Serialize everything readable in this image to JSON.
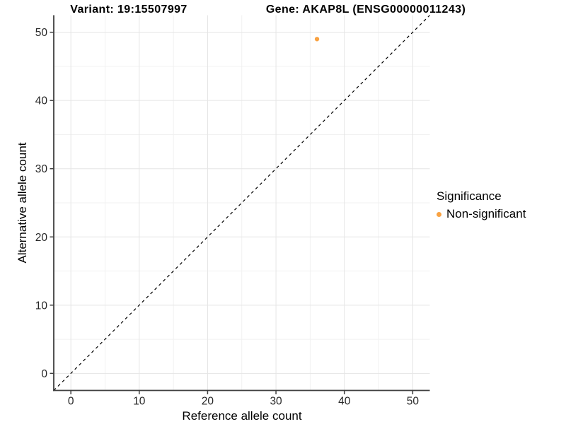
{
  "chart_data": {
    "type": "scatter",
    "titles": {
      "left": "Variant: 19:15507997",
      "right": "Gene: AKAP8L (ENSG00000011243)"
    },
    "xlabel": "Reference allele count",
    "ylabel": "Alternative allele count",
    "xlim": [
      -2.5,
      52.5
    ],
    "ylim": [
      -2.5,
      52.5
    ],
    "x_ticks": [
      0,
      10,
      20,
      30,
      40,
      50
    ],
    "y_ticks": [
      0,
      10,
      20,
      30,
      40,
      50
    ],
    "x_minor_ticks": [
      5,
      15,
      25,
      35,
      45
    ],
    "y_minor_ticks": [
      5,
      15,
      25,
      35,
      45
    ],
    "grid": "on",
    "series": [
      {
        "name": "Non-significant",
        "color": "#F9A242",
        "points": [
          {
            "x": 36,
            "y": 49
          }
        ]
      }
    ],
    "identity_line": {
      "style": "dashed",
      "color": "#000000",
      "slope": 1,
      "intercept": 0
    },
    "legend": {
      "title": "Significance",
      "position": "right",
      "items": [
        {
          "label": "Non-significant",
          "color": "#F9A242"
        }
      ]
    },
    "colors": {
      "grid_major": "#E5E5E5",
      "grid_minor": "#F1F1F1",
      "axis_line": "#3F3F3F",
      "tick_label": "#262626",
      "point": "#F9A242"
    }
  }
}
